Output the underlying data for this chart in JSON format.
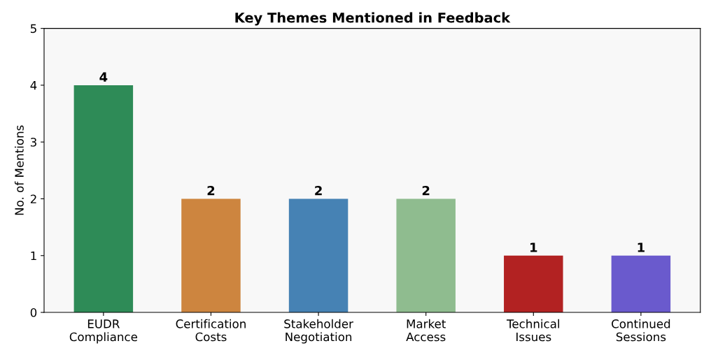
{
  "chart_data": {
    "type": "bar",
    "title": "Key Themes Mentioned in Feedback",
    "ylabel": "No. of Mentions",
    "categories": [
      "EUDR\nCompliance",
      "Certification\nCosts",
      "Stakeholder\nNegotiation",
      "Market\nAccess",
      "Technical\nIssues",
      "Continued\nSessions"
    ],
    "values": [
      4,
      2,
      2,
      2,
      1,
      1
    ],
    "colors": [
      "#2e8b57",
      "#cd853f",
      "#4682b4",
      "#8fbc8f",
      "#b22222",
      "#6a5acd"
    ],
    "ylim": [
      0,
      5
    ],
    "yticks": [
      0,
      1,
      2,
      3,
      4,
      5
    ],
    "grid": false,
    "data_labels": true
  }
}
